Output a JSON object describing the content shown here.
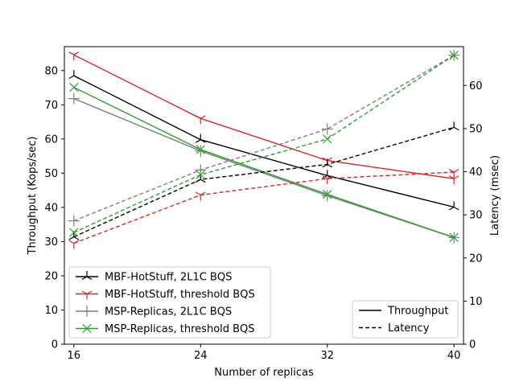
{
  "chart_data": {
    "type": "line",
    "x": [
      16,
      24,
      32,
      40
    ],
    "xlabel": "Number of replicas",
    "ylabel_left": "Throughput (Kops/sec)",
    "ylabel_right": "Latency (msec)",
    "ylim_left": [
      0,
      87
    ],
    "ylim_right": [
      0,
      69
    ],
    "yticks_left": [
      0,
      10,
      20,
      30,
      40,
      50,
      60,
      70,
      80
    ],
    "yticks_right": [
      0,
      10,
      20,
      30,
      40,
      50,
      60
    ],
    "grid": false,
    "throughput_series": [
      {
        "name": "MBF-HotStuff, 2L1C BQS",
        "color": "#000000",
        "marker": "tri_down",
        "values": [
          78.5,
          59.8,
          49.3,
          40.1
        ]
      },
      {
        "name": "MBF-HotStuff, threshold BQS",
        "color": "#d62728",
        "marker": "tri_up",
        "values": [
          84.6,
          66.0,
          53.7,
          48.4
        ]
      },
      {
        "name": "MSP-Replicas, 2L1C BQS",
        "color": "#7f7f7f",
        "marker": "plus",
        "values": [
          71.8,
          56.5,
          43.4,
          31.2
        ]
      },
      {
        "name": "MSP-Replicas, threshold BQS",
        "color": "#2ca02c",
        "marker": "x",
        "values": [
          75.1,
          56.9,
          43.8,
          31.2
        ]
      }
    ],
    "latency_series": [
      {
        "color": "#000000",
        "marker": "tri_down",
        "values": [
          24.9,
          38.2,
          41.7,
          50.3
        ]
      },
      {
        "color": "#d62728",
        "marker": "tri_up",
        "values": [
          23.4,
          34.6,
          38.4,
          39.9
        ]
      },
      {
        "color": "#7f7f7f",
        "marker": "plus",
        "values": [
          28.6,
          40.4,
          49.9,
          67.0
        ]
      },
      {
        "color": "#2ca02c",
        "marker": "x",
        "values": [
          25.9,
          39.3,
          47.6,
          67.0
        ]
      }
    ],
    "legend_series_placement": "lower-left",
    "legend_style_placement": "lower-right",
    "legend_style": [
      {
        "label": "Throughput",
        "dash": "solid"
      },
      {
        "label": "Latency",
        "dash": "dashed"
      }
    ]
  }
}
